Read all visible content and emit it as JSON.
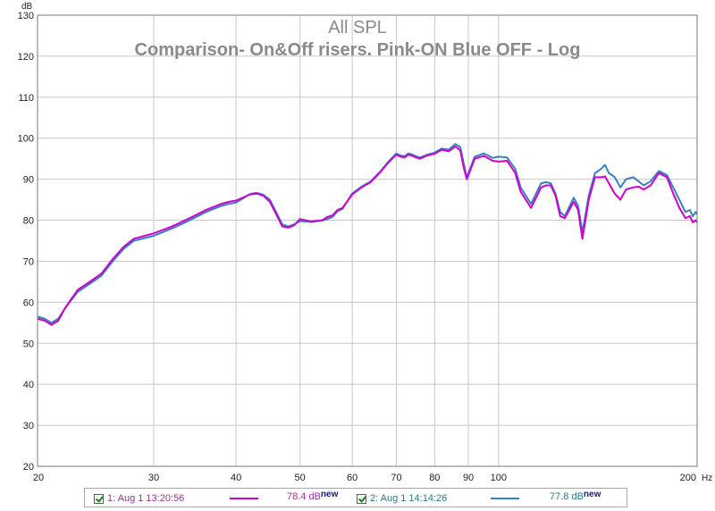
{
  "chart_data": {
    "type": "line",
    "title": "All SPL",
    "subtitle": "Comparison- On&Off risers. Pink-ON Blue OFF - Log",
    "ylabel": "dB",
    "xlabel": "Hz",
    "xscale": "log",
    "xlim": [
      20,
      200
    ],
    "ylim": [
      20,
      130
    ],
    "grid": true,
    "xticks": [
      20,
      30,
      40,
      50,
      60,
      70,
      80,
      90,
      100,
      200
    ],
    "xtick_labels": [
      "20",
      "30",
      "40",
      "50",
      "60",
      "70",
      "80",
      "90",
      "100",
      "200"
    ],
    "yticks": [
      20,
      30,
      40,
      50,
      60,
      70,
      80,
      90,
      100,
      110,
      120,
      130
    ],
    "ytick_labels": [
      "20",
      "30",
      "40",
      "50",
      "60",
      "70",
      "80",
      "90",
      "100",
      "110",
      "120",
      "130"
    ],
    "series": [
      {
        "name": "1: Aug 1 13:20:56",
        "color": "#cc00cc",
        "x": [
          20,
          20.5,
          21,
          21.5,
          22,
          23,
          24,
          25,
          26,
          27,
          28,
          30,
          32,
          34,
          36,
          38,
          39,
          40,
          42,
          43,
          44,
          45,
          46,
          47,
          48,
          49,
          50,
          52,
          54,
          55,
          56,
          57,
          58,
          60,
          62,
          64,
          66,
          68,
          70,
          71,
          72,
          73,
          74,
          75,
          76,
          78,
          80,
          82,
          84,
          86,
          87.5,
          88.5,
          89.5,
          90.5,
          92,
          95,
          98,
          100,
          103,
          106,
          108,
          112,
          116,
          118,
          120,
          122,
          124,
          126,
          130,
          132,
          134,
          137,
          140,
          143,
          145,
          147,
          150,
          153,
          156,
          160,
          163,
          166,
          170,
          175,
          180,
          184,
          188,
          192,
          195,
          197,
          199,
          200
        ],
        "values": [
          56,
          55.5,
          54.5,
          55.5,
          58.5,
          63,
          65,
          67,
          70.5,
          73.5,
          75.5,
          76.8,
          78.5,
          80.5,
          82.5,
          84,
          84.5,
          84.8,
          86.3,
          86.5,
          86,
          84.5,
          81.5,
          78.5,
          78.2,
          78.8,
          80.3,
          79.7,
          80,
          80.8,
          81.2,
          82.5,
          83,
          86.3,
          88,
          89.3,
          91.5,
          94,
          96,
          95.5,
          95.3,
          96,
          95.7,
          95.3,
          95,
          95.8,
          96.2,
          97.2,
          96.8,
          98,
          97,
          93,
          90,
          92,
          95,
          95.7,
          94.5,
          94.3,
          94.5,
          91.5,
          87,
          83,
          88,
          88.5,
          88.5,
          86,
          81,
          80.5,
          84.5,
          82.5,
          75.5,
          85,
          90.5,
          90.5,
          90.7,
          89,
          86.5,
          85,
          87.5,
          88,
          88.2,
          87.5,
          88.5,
          91.5,
          90.5,
          86.5,
          83,
          80.5,
          81,
          79.5,
          80,
          79.5
        ]
      },
      {
        "name": "2: Aug 1 14:14:26",
        "color": "#3a7fbd",
        "x": [
          20,
          20.5,
          21,
          21.5,
          22,
          23,
          24,
          25,
          26,
          27,
          28,
          30,
          32,
          34,
          36,
          38,
          39,
          40,
          42,
          43,
          44,
          45,
          46,
          47,
          48,
          49,
          50,
          52,
          54,
          55,
          56,
          57,
          58,
          60,
          62,
          64,
          66,
          68,
          70,
          71,
          72,
          73,
          74,
          75,
          76,
          78,
          80,
          82,
          84,
          86,
          87.5,
          88.5,
          89.5,
          90.5,
          92,
          95,
          98,
          100,
          103,
          106,
          108,
          112,
          116,
          118,
          120,
          122,
          124,
          126,
          130,
          132,
          134,
          137,
          140,
          143,
          145,
          147,
          150,
          153,
          156,
          160,
          163,
          166,
          170,
          175,
          180,
          184,
          188,
          192,
          195,
          197,
          199,
          200
        ],
        "values": [
          56.5,
          56,
          55,
          56,
          58.5,
          62.5,
          64.5,
          66.5,
          70,
          73,
          75,
          76.2,
          78,
          80,
          82,
          83.5,
          84,
          84.3,
          86.4,
          86.7,
          86.2,
          85,
          82,
          79,
          78.5,
          79,
          79.8,
          79.6,
          79.9,
          80.3,
          80.8,
          82.2,
          82.8,
          86.5,
          88.2,
          89.5,
          91.7,
          94.2,
          96.3,
          95.8,
          95.6,
          96.3,
          96,
          95.6,
          95.3,
          96,
          96.5,
          97.5,
          97.2,
          98.6,
          97.8,
          94,
          90.5,
          92.5,
          95.5,
          96.3,
          95.2,
          95.5,
          95.3,
          92.5,
          88,
          84,
          89,
          89.3,
          89,
          86.5,
          82,
          81,
          85.5,
          83.5,
          77,
          86,
          91.5,
          92.5,
          93.5,
          91.5,
          90.5,
          88,
          90,
          90.5,
          89.5,
          88.5,
          89.5,
          92,
          91,
          88,
          85,
          82,
          82.5,
          81,
          82,
          81.5
        ]
      }
    ]
  },
  "legend": [
    {
      "label": "1: Aug 1 13:20:56",
      "value": "78.4 dB",
      "tag": "new",
      "color": "#cc00cc",
      "text_color": "#993399"
    },
    {
      "label": "2: Aug 1 14:14:26",
      "value": "77.8 dB",
      "tag": "new",
      "color": "#3a7fbd",
      "text_color": "#2a7a8a"
    }
  ]
}
